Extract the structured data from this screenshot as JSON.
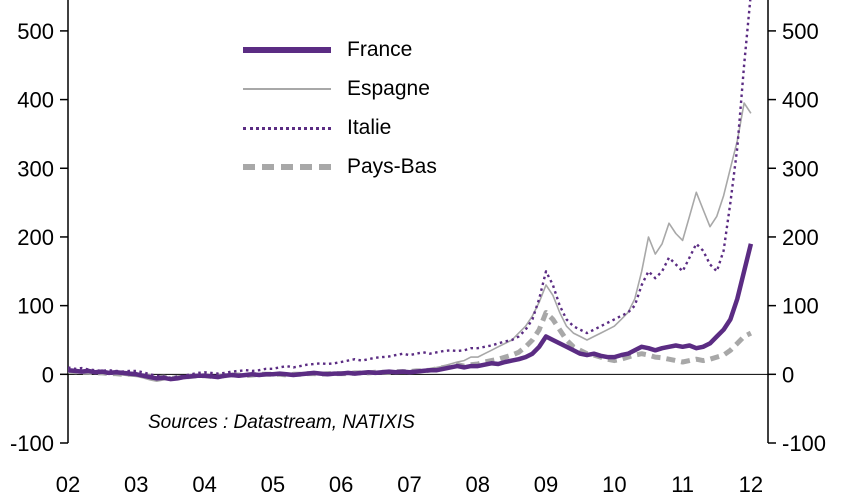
{
  "chart": {
    "source_note": "Sources : Datastream, NATIXIS",
    "colors": {
      "purple": "#5B2C83",
      "gray": "#A8A8A8",
      "axis": "#000000"
    }
  },
  "chart_data": {
    "type": "line",
    "x_ticks": [
      "02",
      "03",
      "04",
      "05",
      "06",
      "07",
      "08",
      "09",
      "10",
      "11",
      "12"
    ],
    "x_tick_years": [
      2002,
      2003,
      2004,
      2005,
      2006,
      2007,
      2008,
      2009,
      2010,
      2011,
      2012
    ],
    "y_ticks": [
      -100,
      0,
      100,
      200,
      300,
      400,
      500
    ],
    "xlim": [
      2002,
      2012.25
    ],
    "ylim": [
      -100,
      545
    ],
    "x_start": 2002,
    "x_step": 0.1,
    "legend_position": "top-left-inside",
    "grid": false,
    "series": [
      {
        "name": "France",
        "color": "purple",
        "style": "solid-thick",
        "values": [
          6,
          5,
          4,
          5,
          3,
          4,
          2,
          3,
          2,
          1,
          0,
          -2,
          -4,
          -6,
          -5,
          -7,
          -6,
          -4,
          -3,
          -2,
          -2,
          -3,
          -4,
          -2,
          -1,
          -2,
          -1,
          0,
          -1,
          0,
          0,
          1,
          0,
          -1,
          0,
          1,
          2,
          1,
          0,
          1,
          1,
          2,
          1,
          2,
          3,
          2,
          3,
          4,
          3,
          4,
          3,
          4,
          5,
          6,
          6,
          8,
          10,
          12,
          10,
          12,
          12,
          14,
          16,
          15,
          18,
          20,
          22,
          25,
          30,
          40,
          55,
          50,
          45,
          40,
          35,
          30,
          28,
          30,
          27,
          25,
          25,
          28,
          30,
          35,
          40,
          38,
          35,
          38,
          40,
          42,
          40,
          42,
          38,
          40,
          45,
          55,
          65,
          80,
          110,
          150,
          190
        ]
      },
      {
        "name": "Espagne",
        "color": "gray",
        "style": "solid-thin",
        "values": [
          8,
          6,
          5,
          4,
          3,
          2,
          1,
          0,
          -1,
          -2,
          -3,
          -5,
          -8,
          -10,
          -8,
          -6,
          -5,
          -4,
          -3,
          -2,
          -2,
          -3,
          -4,
          -3,
          -2,
          -1,
          -2,
          -1,
          0,
          0,
          0,
          -1,
          0,
          1,
          0,
          1,
          0,
          1,
          2,
          1,
          1,
          2,
          1,
          2,
          2,
          3,
          2,
          3,
          3,
          4,
          4,
          5,
          6,
          8,
          10,
          12,
          15,
          18,
          20,
          25,
          25,
          30,
          35,
          40,
          45,
          50,
          60,
          70,
          85,
          105,
          130,
          115,
          90,
          70,
          60,
          55,
          50,
          55,
          60,
          65,
          70,
          80,
          90,
          110,
          150,
          200,
          175,
          190,
          220,
          205,
          195,
          230,
          265,
          240,
          215,
          230,
          260,
          300,
          340,
          395,
          380
        ]
      },
      {
        "name": "Italie",
        "color": "purple",
        "style": "dotted",
        "values": [
          10,
          8,
          9,
          7,
          6,
          5,
          6,
          5,
          4,
          5,
          5,
          3,
          0,
          -2,
          -3,
          -5,
          -3,
          -2,
          0,
          2,
          3,
          2,
          1,
          2,
          4,
          5,
          6,
          5,
          6,
          8,
          8,
          10,
          12,
          10,
          12,
          14,
          15,
          16,
          15,
          16,
          18,
          20,
          22,
          20,
          22,
          24,
          25,
          26,
          28,
          30,
          28,
          30,
          32,
          30,
          32,
          34,
          35,
          34,
          35,
          38,
          38,
          40,
          42,
          45,
          48,
          50,
          55,
          65,
          80,
          110,
          150,
          130,
          100,
          80,
          70,
          65,
          60,
          65,
          70,
          75,
          80,
          85,
          90,
          100,
          130,
          150,
          140,
          150,
          170,
          160,
          150,
          170,
          190,
          180,
          160,
          150,
          180,
          250,
          330,
          450,
          555
        ]
      },
      {
        "name": "Pays-Bas",
        "color": "gray",
        "style": "dashed-thick",
        "values": [
          5,
          4,
          3,
          3,
          2,
          2,
          1,
          1,
          0,
          0,
          0,
          -2,
          -3,
          -5,
          -4,
          -6,
          -5,
          -4,
          -3,
          -2,
          -2,
          -3,
          -3,
          -2,
          -1,
          -1,
          -2,
          -1,
          0,
          0,
          0,
          0,
          -1,
          0,
          0,
          1,
          1,
          0,
          1,
          1,
          1,
          1,
          2,
          2,
          2,
          3,
          3,
          3,
          4,
          4,
          4,
          5,
          5,
          6,
          8,
          10,
          12,
          14,
          12,
          14,
          15,
          18,
          20,
          22,
          25,
          28,
          32,
          40,
          50,
          65,
          90,
          80,
          65,
          50,
          40,
          35,
          30,
          28,
          25,
          22,
          20,
          22,
          25,
          28,
          30,
          28,
          25,
          24,
          22,
          20,
          18,
          20,
          22,
          20,
          22,
          25,
          28,
          35,
          45,
          55,
          60
        ]
      }
    ]
  }
}
